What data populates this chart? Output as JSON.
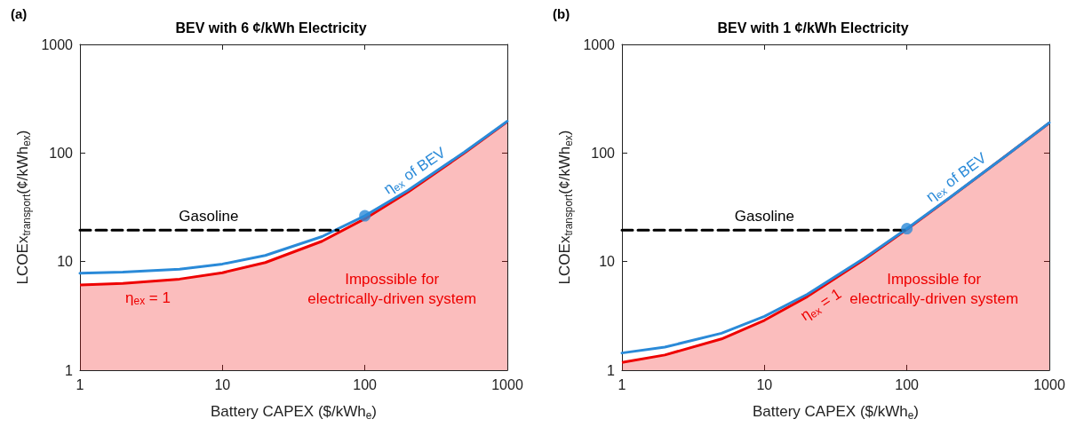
{
  "chart_data": [
    {
      "type": "line",
      "title": "BEV with 6 ¢/kWh Electricity",
      "xlabel": "Battery CAPEX ($/kWh$_{e}$)",
      "ylabel": "LCOEx$_{transport}$(¢/kWh$_{ex}$)",
      "annotations": [
        "(a)",
        "Impossible for\nelectrically-driven system"
      ],
      "log": "xy",
      "xlim": [
        1,
        1000
      ],
      "ylim": [
        1,
        1000
      ],
      "xticks": [
        1,
        10,
        100,
        1000
      ],
      "yticks": [
        1,
        10,
        100,
        1000
      ],
      "series": [
        {
          "type": "area",
          "name": "η$_{ex}$ = 1",
          "color": "#ee0000",
          "x": [
            1,
            2,
            5,
            10,
            20,
            50,
            100,
            200,
            500,
            1000
          ],
          "values": [
            6.1,
            6.3,
            6.9,
            7.9,
            9.8,
            15.4,
            24.8,
            43.6,
            100,
            194
          ]
        },
        {
          "type": "line",
          "name": "η$_{ex}$ of BEV",
          "color": "#2a8ad8",
          "x": [
            1,
            2,
            5,
            10,
            20,
            50,
            100,
            200,
            500,
            1000
          ],
          "values": [
            7.8,
            8.0,
            8.5,
            9.5,
            11.4,
            17.0,
            26.4,
            45.2,
            102,
            196
          ]
        },
        {
          "type": "line",
          "name": "Gasoline",
          "color": "#000000",
          "line_style": "dashed",
          "x": [
            1,
            65
          ],
          "values": [
            19.5,
            19.5
          ]
        },
        {
          "type": "scatter",
          "color": "#2a8ad8",
          "marker": "circle",
          "x": [
            100
          ],
          "values": [
            26.4
          ]
        }
      ]
    },
    {
      "type": "line",
      "title": "BEV with 1 ¢/kWh Electricity",
      "xlabel": "Battery CAPEX ($/kWh$_{e}$)",
      "ylabel": "LCOEx$_{transport}$(¢/kWh$_{ex}$)",
      "annotations": [
        "(b)",
        "Impossible for\nelectrically-driven system"
      ],
      "log": "xy",
      "xlim": [
        1,
        1000
      ],
      "ylim": [
        1,
        1000
      ],
      "xticks": [
        1,
        10,
        100,
        1000
      ],
      "yticks": [
        1,
        10,
        100,
        1000
      ],
      "series": [
        {
          "type": "area",
          "name": "η$_{ex}$ = 1",
          "color": "#ee0000",
          "x": [
            1,
            2,
            5,
            10,
            20,
            50,
            100,
            200,
            500,
            1000
          ],
          "values": [
            1.18,
            1.38,
            1.94,
            2.88,
            4.76,
            10.4,
            19.8,
            38.6,
            95,
            189
          ]
        },
        {
          "type": "line",
          "name": "η$_{ex}$ of BEV",
          "color": "#2a8ad8",
          "x": [
            1,
            2,
            5,
            10,
            20,
            50,
            100,
            200,
            500,
            1000
          ],
          "values": [
            1.44,
            1.63,
            2.19,
            3.13,
            5.0,
            10.7,
            20.1,
            38.9,
            95,
            190
          ]
        },
        {
          "type": "line",
          "name": "Gasoline",
          "color": "#000000",
          "line_style": "dashed",
          "x": [
            1,
            100
          ],
          "values": [
            19.5,
            19.5
          ]
        },
        {
          "type": "scatter",
          "color": "#2a8ad8",
          "marker": "circle",
          "x": [
            100
          ],
          "values": [
            20.1
          ]
        }
      ]
    }
  ]
}
